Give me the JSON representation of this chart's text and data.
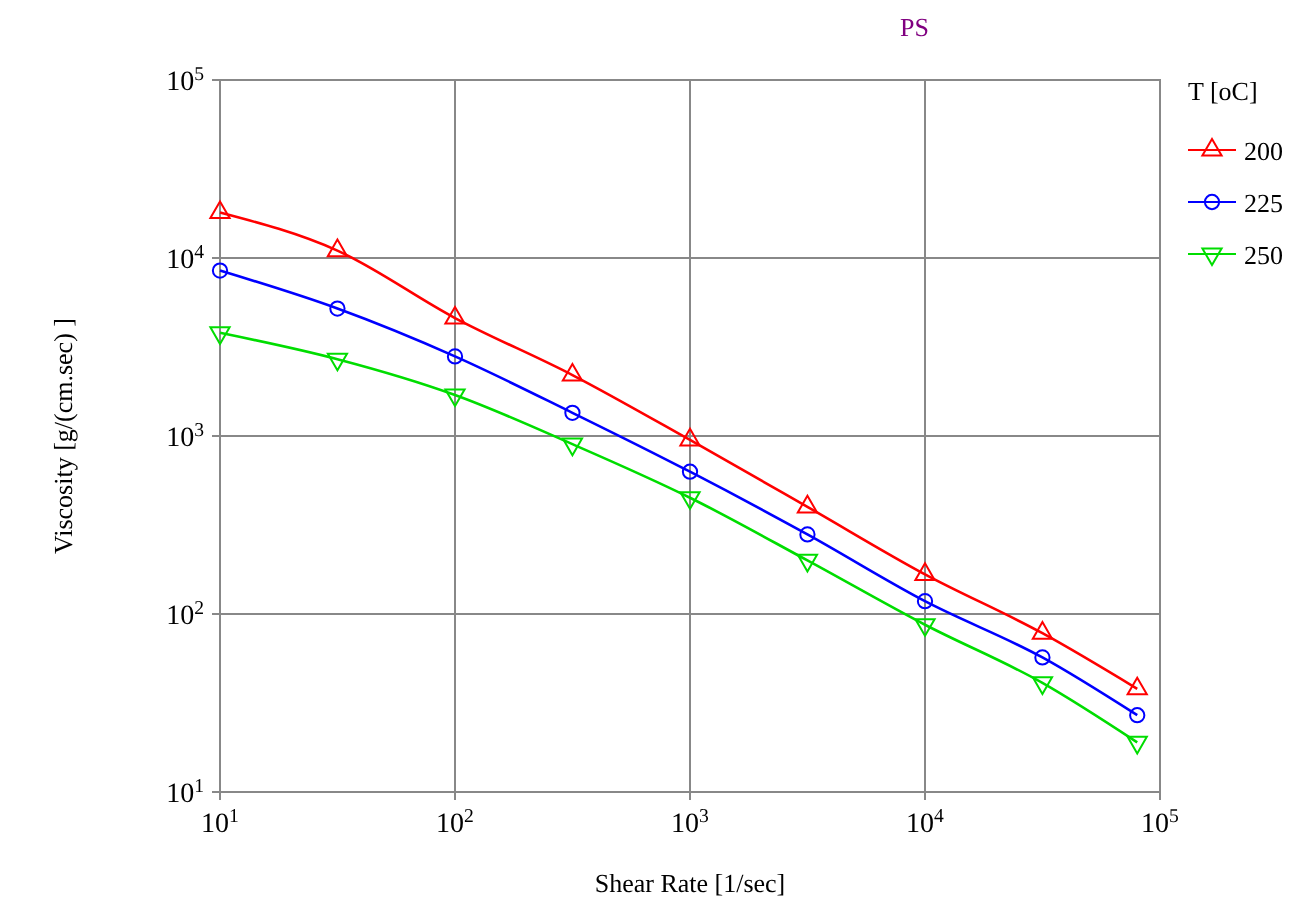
{
  "chart_data": {
    "type": "line",
    "title": "PS",
    "xlabel": "Shear Rate [1/sec]",
    "ylabel": "Viscosity [g/(cm.sec) ]",
    "legend_title": "T [oC]",
    "legend": "top right",
    "log": "xy",
    "grid": true,
    "xlim": [
      10,
      100000
    ],
    "xticks": [
      {
        "value": 10,
        "label": "10$^{1}$"
      },
      {
        "value": 100,
        "label": "10$^{2}$"
      },
      {
        "value": 1000,
        "label": "10$^{3}$"
      },
      {
        "value": 10000,
        "label": "10$^{4}$"
      },
      {
        "value": 100000,
        "label": "10$^{5}$"
      }
    ],
    "ylim": [
      10,
      100000
    ],
    "yticks": [
      {
        "value": 10,
        "label": "10$^{1}$"
      },
      {
        "value": 100,
        "label": "10$^{2}$"
      },
      {
        "value": 1000,
        "label": "10$^{3}$"
      },
      {
        "value": 10000,
        "label": "10$^{4}$"
      },
      {
        "value": 100000,
        "label": "10$^{5}$"
      }
    ],
    "x": [
      10,
      31.6,
      100,
      316,
      1000,
      3160,
      10000,
      31600,
      80000
    ],
    "series": [
      {
        "name": "200",
        "color": "#ff0000",
        "marker": "triangle",
        "values": [
          18000,
          11000,
          4600,
          2200,
          950,
          400,
          167,
          78,
          38
        ]
      },
      {
        "name": "225",
        "color": "#0000ff",
        "marker": "circle",
        "values": [
          8500,
          5200,
          2800,
          1350,
          630,
          280,
          118,
          57,
          27
        ]
      },
      {
        "name": "250",
        "color": "#00dd00",
        "marker": "triangle-down",
        "values": [
          3800,
          2700,
          1700,
          900,
          450,
          200,
          87,
          41,
          19
        ]
      }
    ]
  }
}
